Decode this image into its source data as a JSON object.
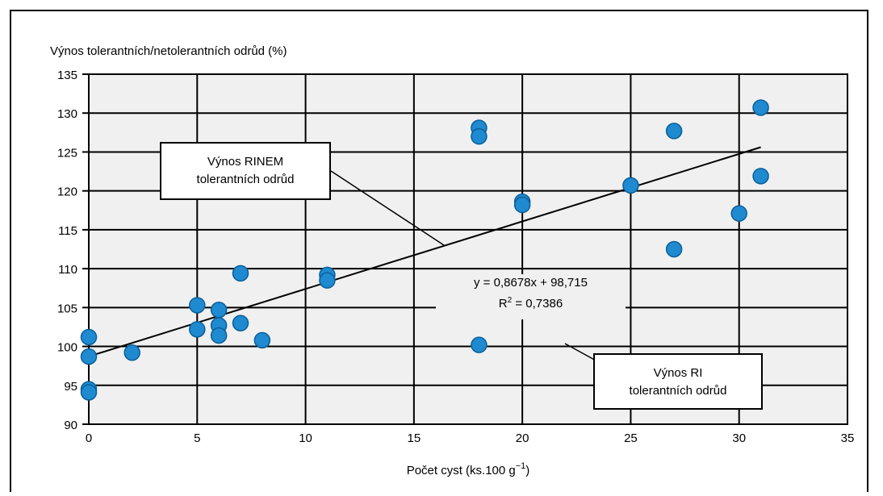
{
  "chart_data": {
    "type": "scatter",
    "title": "",
    "ylabel": "Výnos tolerantních/netolerantních odrůd (%)",
    "xlabel_main": "Počet cyst (ks.100 g",
    "xlabel_sup": "−1",
    "xlabel_close": ")",
    "xlim": [
      0,
      35
    ],
    "ylim": [
      90,
      135
    ],
    "xticks": [
      0,
      5,
      10,
      15,
      20,
      25,
      30,
      35
    ],
    "yticks": [
      90,
      95,
      100,
      105,
      110,
      115,
      120,
      125,
      130,
      135
    ],
    "grid": true,
    "points": [
      {
        "x": 0,
        "y": 101.2
      },
      {
        "x": 0,
        "y": 98.7
      },
      {
        "x": 0,
        "y": 94.5
      },
      {
        "x": 0,
        "y": 94.1
      },
      {
        "x": 2,
        "y": 99.2
      },
      {
        "x": 5,
        "y": 105.3
      },
      {
        "x": 5,
        "y": 102.2
      },
      {
        "x": 6,
        "y": 104.7
      },
      {
        "x": 6,
        "y": 102.7
      },
      {
        "x": 6,
        "y": 101.4
      },
      {
        "x": 7,
        "y": 109.4
      },
      {
        "x": 7,
        "y": 103.0
      },
      {
        "x": 8,
        "y": 100.8
      },
      {
        "x": 11,
        "y": 109.2
      },
      {
        "x": 11,
        "y": 108.5
      },
      {
        "x": 18,
        "y": 128.1
      },
      {
        "x": 18,
        "y": 127.0
      },
      {
        "x": 18,
        "y": 100.2
      },
      {
        "x": 20,
        "y": 118.6
      },
      {
        "x": 20,
        "y": 118.2
      },
      {
        "x": 25,
        "y": 120.7
      },
      {
        "x": 27,
        "y": 127.7
      },
      {
        "x": 27,
        "y": 112.5
      },
      {
        "x": 30,
        "y": 117.1
      },
      {
        "x": 31,
        "y": 130.7
      },
      {
        "x": 31,
        "y": 121.9
      }
    ],
    "trendline": {
      "slope": 0.8678,
      "intercept": 98.715,
      "x_start": 0,
      "x_end": 31
    },
    "equation_line1": "y = 0,8678x + 98,715",
    "r2_label": "R",
    "r2_sup": "2",
    "r2_value": " = 0,7386",
    "callout_1": {
      "line1": "Výnos RINEM",
      "line2": "tolerantních odrůd"
    },
    "callout_2": {
      "line1": "Výnos RI",
      "line2": "tolerantních odrůd"
    },
    "colors": {
      "plot_bg": "#f0f0f0",
      "marker": "#1f8ad0",
      "marker_edge": "#0a5f99",
      "grid": "#000000"
    }
  }
}
